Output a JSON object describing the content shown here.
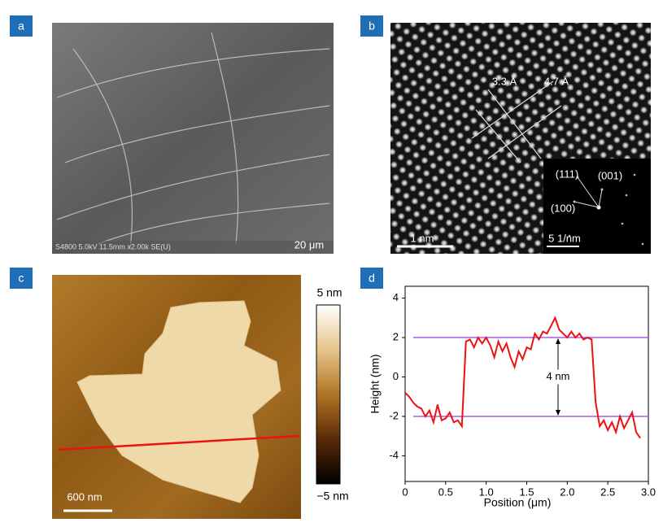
{
  "panels": {
    "a": {
      "label": "a",
      "info": "S4800 5.0kV 11.5mm x2.00k SE(U)",
      "scale_bar": "20 μm"
    },
    "b": {
      "label": "b",
      "spacing_1": "3.3 Å",
      "spacing_2": "4.7 Å",
      "scale_bar": "1 nm",
      "inset": {
        "spots": [
          "(111)",
          "(001)",
          "(100)"
        ],
        "scale_bar": "5 1/nm"
      }
    },
    "c": {
      "label": "c",
      "scale_bar": "600 nm",
      "colorbar_max": "5 nm",
      "colorbar_min": "−5 nm"
    }
  },
  "chart_data": {
    "type": "line",
    "label": "d",
    "x_label": "Position (μm)",
    "y_label": "Height (nm)",
    "x": [
      0,
      0.05,
      0.1,
      0.15,
      0.2,
      0.25,
      0.3,
      0.35,
      0.4,
      0.45,
      0.5,
      0.55,
      0.6,
      0.65,
      0.7,
      0.75,
      0.8,
      0.85,
      0.9,
      0.95,
      1.0,
      1.05,
      1.1,
      1.15,
      1.2,
      1.25,
      1.3,
      1.35,
      1.4,
      1.45,
      1.5,
      1.55,
      1.6,
      1.65,
      1.7,
      1.75,
      1.8,
      1.85,
      1.9,
      1.95,
      2.0,
      2.05,
      2.1,
      2.15,
      2.2,
      2.25,
      2.3,
      2.35,
      2.4,
      2.45,
      2.5,
      2.55,
      2.6,
      2.65,
      2.7,
      2.75,
      2.8,
      2.85,
      2.9
    ],
    "series": [
      {
        "color": "#ee1111",
        "values": [
          -0.8,
          -1.0,
          -1.3,
          -1.5,
          -1.6,
          -2.0,
          -1.7,
          -2.3,
          -1.4,
          -2.2,
          -2.1,
          -1.8,
          -2.3,
          -2.2,
          -2.5,
          1.8,
          1.9,
          1.5,
          2.0,
          1.7,
          2.0,
          1.6,
          1.0,
          1.8,
          1.3,
          1.7,
          1.0,
          0.5,
          1.3,
          0.9,
          1.5,
          1.4,
          2.2,
          1.9,
          2.3,
          2.2,
          2.6,
          3.0,
          2.4,
          2.2,
          2.0,
          2.3,
          2.0,
          2.2,
          1.9,
          2.0,
          1.9,
          -1.3,
          -2.5,
          -2.2,
          -2.7,
          -2.3,
          -2.8,
          -2.0,
          -2.6,
          -2.2,
          -1.8,
          -2.8,
          -3.1
        ]
      }
    ],
    "reference_lines": [
      {
        "value": 2,
        "x": [
          0.1,
          3.0
        ],
        "color": "#a65be6"
      },
      {
        "value": -2,
        "x": [
          0.1,
          3.0
        ],
        "color": "#a65be6"
      }
    ],
    "annotation": "4 nm",
    "xlim": [
      0,
      3
    ],
    "ylim": [
      -5.3,
      4.6
    ],
    "xticks": [
      0,
      0.5,
      {
        "value": 1,
        "label": "1.0"
      },
      1.5,
      {
        "value": 2,
        "label": "2.0"
      },
      2.5,
      {
        "value": 3,
        "label": "3.0"
      }
    ],
    "yticks": [
      -4,
      -2,
      0,
      2,
      4
    ]
  }
}
